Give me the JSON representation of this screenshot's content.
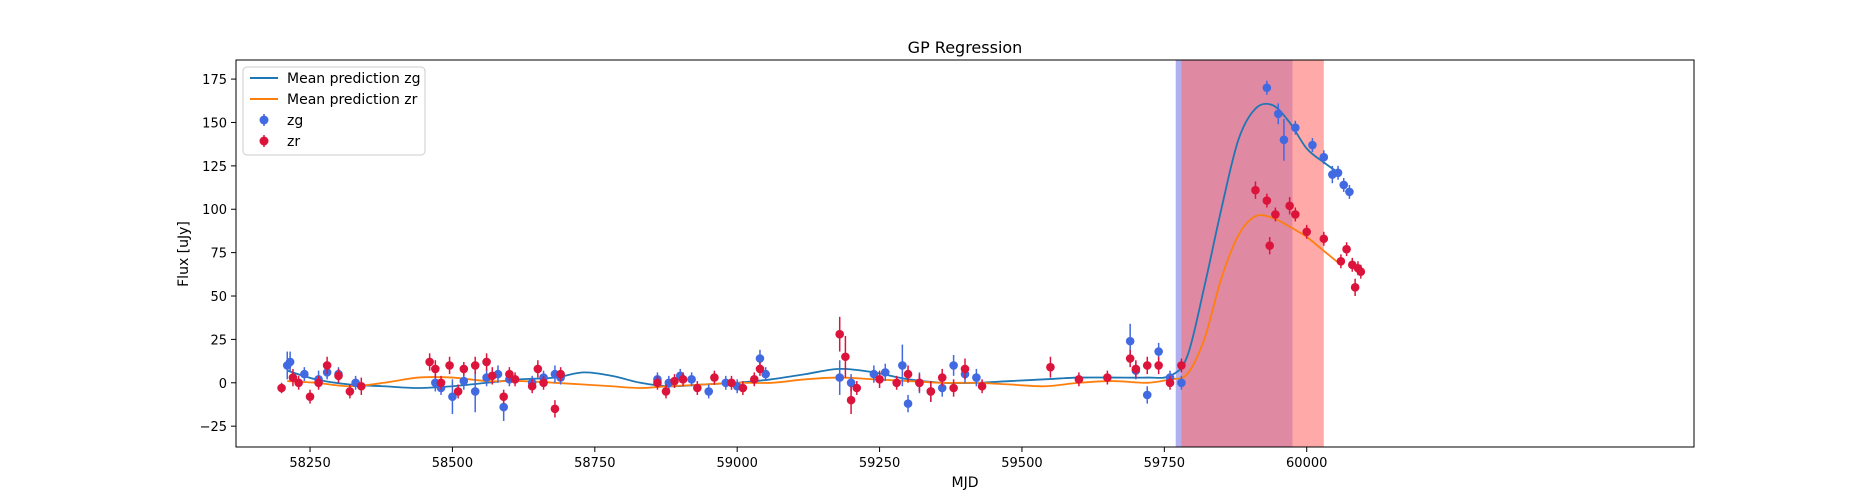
{
  "chart_data": {
    "type": "scatter",
    "title": "GP Regression",
    "xlabel": "MJD",
    "ylabel": "Flux [uJy]",
    "xlim": [
      58120,
      60680
    ],
    "ylim": [
      -37,
      186
    ],
    "xticks": [
      58250,
      58500,
      58750,
      59000,
      59250,
      59500,
      59750,
      60000
    ],
    "yticks": [
      -25,
      0,
      25,
      50,
      75,
      100,
      125,
      150,
      175
    ],
    "grid": false,
    "legend_position": "top-left",
    "legend": [
      "Mean prediction zg",
      "Mean prediction zr",
      "zg",
      "zr"
    ],
    "shaded_regions": [
      {
        "x_start": 59770,
        "x_end": 59975,
        "color": "#7b7be8",
        "alpha": 0.6
      },
      {
        "x_start": 59780,
        "x_end": 60030,
        "color": "#ff6f6f",
        "alpha": 0.6
      }
    ],
    "lines": [
      {
        "name": "Mean prediction zg",
        "color": "#1f77b4",
        "x": [
          58210,
          58260,
          58320,
          58380,
          58440,
          58500,
          58560,
          58620,
          58680,
          58730,
          58780,
          58830,
          58880,
          58940,
          59000,
          59060,
          59120,
          59180,
          59240,
          59300,
          59360,
          59420,
          59480,
          59540,
          59600,
          59660,
          59720,
          59760,
          59790,
          59820,
          59850,
          59880,
          59910,
          59940,
          59970,
          60000,
          60030,
          60060
        ],
        "y": [
          7,
          2,
          -1,
          -2,
          -3,
          -2,
          0,
          2,
          3,
          6,
          4,
          0,
          -2,
          -1,
          0,
          2,
          5,
          8,
          6,
          2,
          0,
          0,
          1,
          2,
          3,
          3,
          3,
          4,
          15,
          55,
          100,
          140,
          158,
          160,
          150,
          135,
          127,
          120
        ]
      },
      {
        "name": "Mean prediction zr",
        "color": "#ff7f0e",
        "x": [
          58210,
          58260,
          58320,
          58380,
          58440,
          58500,
          58560,
          58620,
          58680,
          58730,
          58780,
          58830,
          58880,
          58940,
          59000,
          59060,
          59120,
          59180,
          59240,
          59300,
          59360,
          59420,
          59480,
          59540,
          59600,
          59660,
          59720,
          59760,
          59790,
          59820,
          59850,
          59880,
          59910,
          59940,
          59970,
          60000,
          60030,
          60060
        ],
        "y": [
          1,
          0,
          -2,
          0,
          3,
          3,
          1,
          1,
          0,
          -1,
          -2,
          -3,
          -2,
          -1,
          0,
          0,
          2,
          3,
          2,
          1,
          0,
          0,
          -1,
          -2,
          0,
          1,
          0,
          2,
          5,
          25,
          60,
          85,
          96,
          95,
          90,
          84,
          76,
          68
        ]
      }
    ],
    "series": [
      {
        "name": "zg",
        "color": "#4169e1",
        "x": [
          58210,
          58215,
          58240,
          58265,
          58280,
          58300,
          58330,
          58470,
          58480,
          58500,
          58520,
          58540,
          58560,
          58580,
          58590,
          58600,
          58640,
          58660,
          58680,
          58690,
          58860,
          58880,
          58900,
          58920,
          58950,
          58980,
          59000,
          59040,
          59050,
          59180,
          59200,
          59240,
          59260,
          59290,
          59300,
          59320,
          59340,
          59360,
          59380,
          59400,
          59420,
          59690,
          59700,
          59720,
          59740,
          59760,
          59780,
          59930,
          59950,
          59960,
          59980,
          60010,
          60030,
          60045,
          60055,
          60065,
          60075
        ],
        "y": [
          10,
          12,
          5,
          2,
          6,
          5,
          0,
          0,
          -3,
          -8,
          1,
          -5,
          3,
          5,
          -14,
          2,
          0,
          3,
          5,
          3,
          2,
          0,
          4,
          2,
          -5,
          0,
          -2,
          14,
          5,
          3,
          0,
          5,
          6,
          10,
          -12,
          0,
          -5,
          -3,
          10,
          5,
          3,
          24,
          7,
          -7,
          18,
          3,
          0,
          170,
          155,
          140,
          147,
          137,
          130,
          120,
          121,
          114,
          110
        ],
        "err": [
          8,
          6,
          4,
          5,
          4,
          4,
          4,
          5,
          4,
          10,
          5,
          12,
          5,
          5,
          8,
          4,
          4,
          4,
          5,
          4,
          4,
          4,
          4,
          4,
          4,
          4,
          4,
          5,
          4,
          10,
          5,
          5,
          5,
          12,
          5,
          6,
          6,
          5,
          6,
          5,
          5,
          10,
          5,
          5,
          5,
          4,
          4,
          4,
          6,
          12,
          4,
          4,
          4,
          5,
          4,
          4,
          4
        ]
      },
      {
        "name": "zr",
        "color": "#dc143c",
        "x": [
          58200,
          58220,
          58230,
          58250,
          58265,
          58280,
          58300,
          58320,
          58340,
          58460,
          58470,
          58480,
          58495,
          58510,
          58520,
          58540,
          58560,
          58570,
          58590,
          58600,
          58610,
          58640,
          58650,
          58660,
          58680,
          58690,
          58860,
          58875,
          58890,
          58905,
          58930,
          58960,
          58990,
          59010,
          59030,
          59040,
          59180,
          59190,
          59200,
          59210,
          59250,
          59280,
          59300,
          59320,
          59340,
          59360,
          59380,
          59400,
          59430,
          59550,
          59600,
          59650,
          59690,
          59700,
          59720,
          59740,
          59760,
          59780,
          59910,
          59930,
          59935,
          59945,
          59970,
          59980,
          60000,
          60030,
          60060,
          60070,
          60080,
          60085,
          60090,
          60095
        ],
        "y": [
          -3,
          3,
          0,
          -8,
          0,
          10,
          4,
          -5,
          -2,
          12,
          8,
          0,
          10,
          -5,
          8,
          10,
          12,
          4,
          -8,
          5,
          2,
          -2,
          8,
          0,
          -15,
          5,
          0,
          -5,
          1,
          2,
          -3,
          3,
          0,
          -3,
          2,
          8,
          28,
          15,
          -10,
          -3,
          2,
          0,
          5,
          0,
          -5,
          3,
          -3,
          8,
          -2,
          9,
          2,
          3,
          14,
          8,
          10,
          10,
          0,
          10,
          111,
          105,
          79,
          97,
          102,
          97,
          87,
          83,
          70,
          77,
          68,
          55,
          66,
          64
        ],
        "err": [
          3,
          5,
          4,
          4,
          4,
          5,
          4,
          4,
          5,
          5,
          5,
          4,
          5,
          4,
          4,
          5,
          5,
          5,
          4,
          4,
          4,
          4,
          5,
          4,
          5,
          4,
          4,
          4,
          4,
          4,
          4,
          4,
          4,
          4,
          4,
          4,
          10,
          12,
          8,
          4,
          5,
          4,
          5,
          5,
          6,
          5,
          5,
          6,
          4,
          6,
          4,
          4,
          5,
          5,
          5,
          5,
          4,
          4,
          5,
          4,
          5,
          4,
          5,
          4,
          4,
          4,
          4,
          4,
          4,
          5,
          4,
          4
        ]
      }
    ]
  }
}
